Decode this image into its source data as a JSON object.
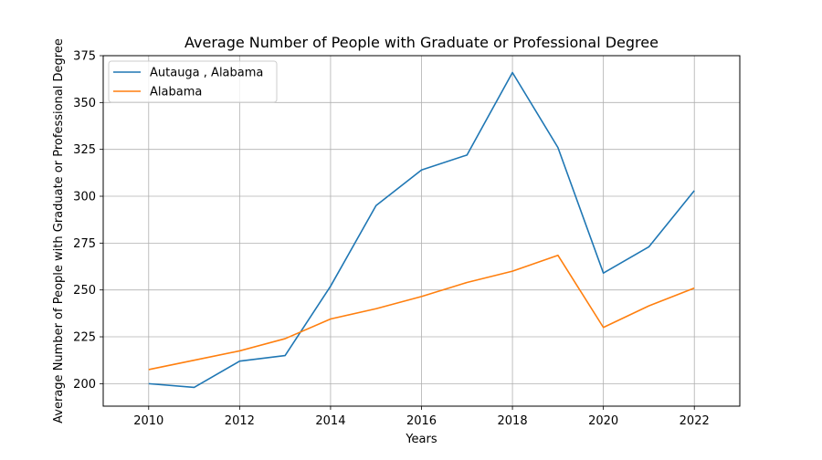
{
  "chart_data": {
    "type": "line",
    "title": "Average Number of People with Graduate or Professional Degree",
    "xlabel": "Years",
    "ylabel": "Average Number of People with Graduate or Professional Degree",
    "xlim": [
      2009,
      2023
    ],
    "ylim": [
      188,
      375
    ],
    "x_ticks": [
      2010,
      2012,
      2014,
      2016,
      2018,
      2020,
      2022
    ],
    "y_ticks": [
      200,
      225,
      250,
      275,
      300,
      325,
      350,
      375
    ],
    "grid": true,
    "legend_position": "top-left",
    "x": [
      2010,
      2011,
      2012,
      2013,
      2014,
      2015,
      2016,
      2017,
      2018,
      2019,
      2020,
      2021,
      2022
    ],
    "series": [
      {
        "name": "Autauga , Alabama",
        "color": "#1f77b4",
        "values": [
          200,
          198,
          212,
          215,
          252,
          295,
          314,
          322,
          366,
          326,
          259,
          273,
          303
        ]
      },
      {
        "name": "Alabama",
        "color": "#ff7f0e",
        "values": [
          207.5,
          212.5,
          217.5,
          224,
          234.5,
          240,
          246.5,
          254,
          260,
          268.5,
          230,
          241.5,
          251
        ]
      }
    ]
  }
}
